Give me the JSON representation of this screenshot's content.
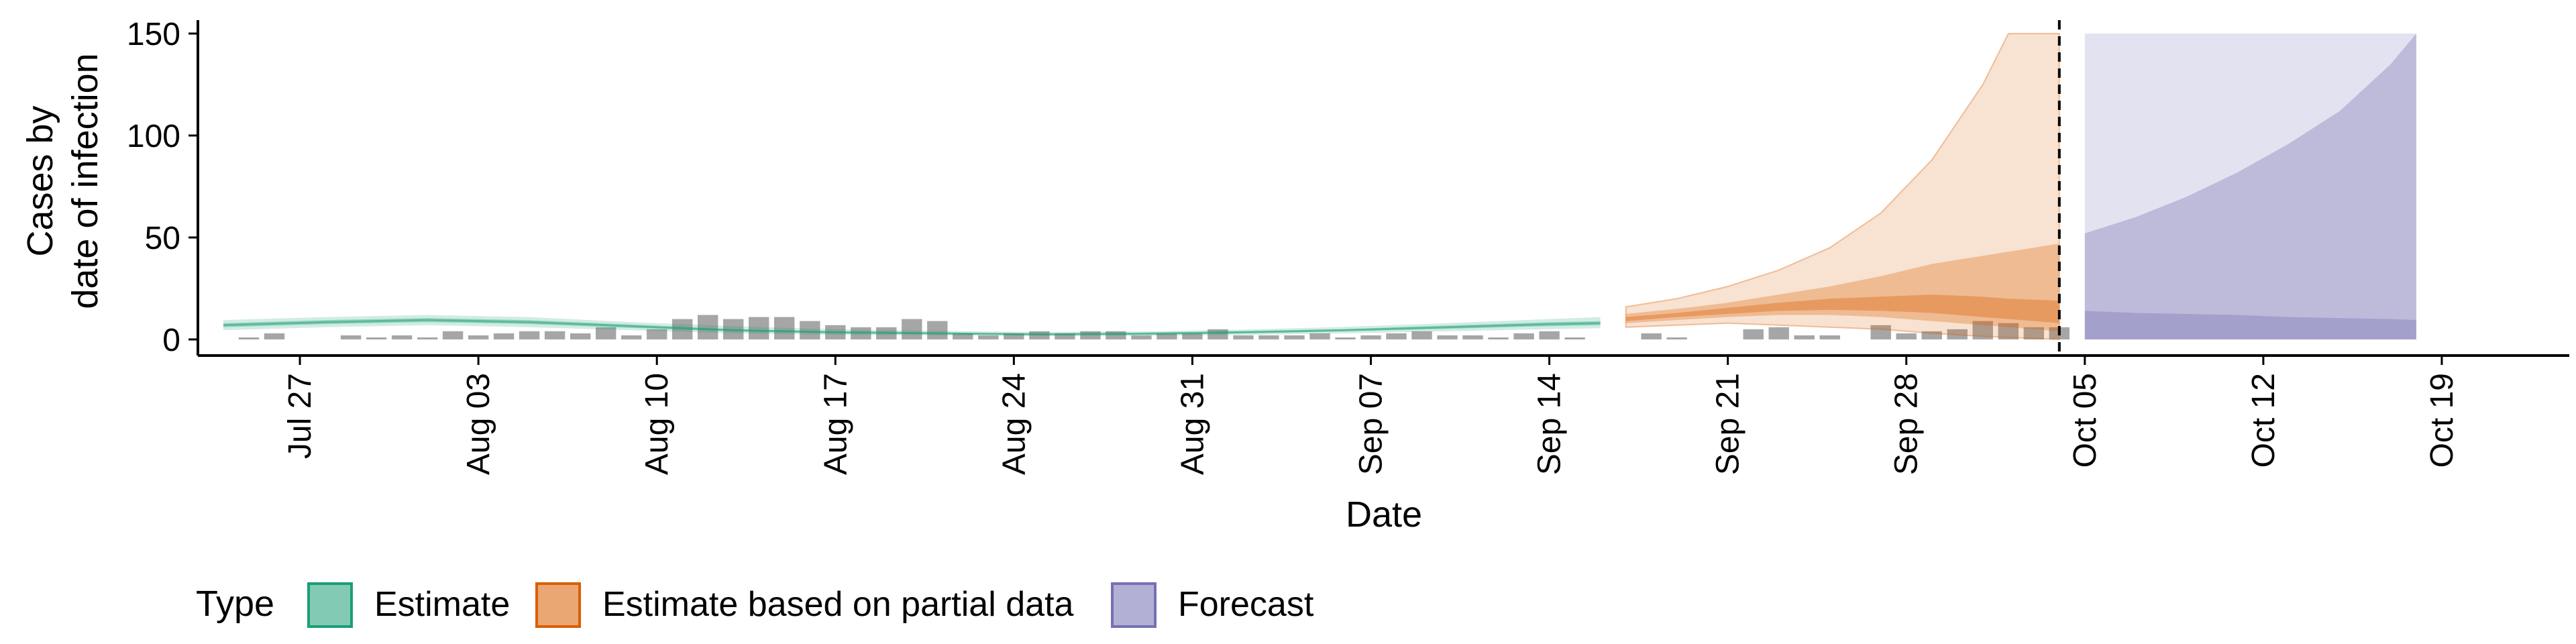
{
  "chart_data": {
    "type": "area",
    "xlabel": "Date",
    "ylabel_lines": [
      "Cases by",
      "date of infection"
    ],
    "ylim": [
      0,
      150
    ],
    "yticks": [
      0,
      50,
      100,
      150
    ],
    "xlim": [
      "2021-07-23",
      "2021-10-24"
    ],
    "xticks": [
      {
        "date": "2021-07-27",
        "label": "Jul 27"
      },
      {
        "date": "2021-08-03",
        "label": "Aug 03"
      },
      {
        "date": "2021-08-10",
        "label": "Aug 10"
      },
      {
        "date": "2021-08-17",
        "label": "Aug 17"
      },
      {
        "date": "2021-08-24",
        "label": "Aug 24"
      },
      {
        "date": "2021-08-31",
        "label": "Aug 31"
      },
      {
        "date": "2021-09-07",
        "label": "Sep 07"
      },
      {
        "date": "2021-09-14",
        "label": "Sep 14"
      },
      {
        "date": "2021-09-21",
        "label": "Sep 21"
      },
      {
        "date": "2021-09-28",
        "label": "Sep 28"
      },
      {
        "date": "2021-10-05",
        "label": "Oct 05"
      },
      {
        "date": "2021-10-12",
        "label": "Oct 12"
      },
      {
        "date": "2021-10-19",
        "label": "Oct 19"
      }
    ],
    "vline_date": "2021-10-04",
    "legend": {
      "title": "Type",
      "position": "bottom",
      "entries": [
        {
          "label": "Estimate",
          "color": "#1b9e77"
        },
        {
          "label": "Estimate based on partial data",
          "color": "#d95f02"
        },
        {
          "label": "Forecast",
          "color": "#7570b3"
        }
      ]
    },
    "observed_cases": {
      "color": "#a6a6a6",
      "dates": [
        "2021-07-25",
        "2021-07-26",
        "2021-07-27",
        "2021-07-28",
        "2021-07-29",
        "2021-07-30",
        "2021-07-31",
        "2021-08-01",
        "2021-08-02",
        "2021-08-03",
        "2021-08-04",
        "2021-08-05",
        "2021-08-06",
        "2021-08-07",
        "2021-08-08",
        "2021-08-09",
        "2021-08-10",
        "2021-08-11",
        "2021-08-12",
        "2021-08-13",
        "2021-08-14",
        "2021-08-15",
        "2021-08-16",
        "2021-08-17",
        "2021-08-18",
        "2021-08-19",
        "2021-08-20",
        "2021-08-21",
        "2021-08-22",
        "2021-08-23",
        "2021-08-24",
        "2021-08-25",
        "2021-08-26",
        "2021-08-27",
        "2021-08-28",
        "2021-08-29",
        "2021-08-30",
        "2021-08-31",
        "2021-09-01",
        "2021-09-02",
        "2021-09-03",
        "2021-09-04",
        "2021-09-05",
        "2021-09-06",
        "2021-09-07",
        "2021-09-08",
        "2021-09-09",
        "2021-09-10",
        "2021-09-11",
        "2021-09-12",
        "2021-09-13",
        "2021-09-14",
        "2021-09-15",
        "2021-09-16",
        "2021-09-17",
        "2021-09-18",
        "2021-09-19",
        "2021-09-20",
        "2021-09-21",
        "2021-09-22",
        "2021-09-23",
        "2021-09-24",
        "2021-09-25",
        "2021-09-26",
        "2021-09-27",
        "2021-09-28",
        "2021-09-29",
        "2021-09-30",
        "2021-10-01",
        "2021-10-02",
        "2021-10-03",
        "2021-10-04"
      ],
      "values": [
        1,
        3,
        0,
        0,
        2,
        1,
        2,
        1,
        4,
        2,
        3,
        4,
        4,
        3,
        6,
        2,
        5,
        10,
        12,
        10,
        11,
        11,
        9,
        7,
        6,
        6,
        10,
        9,
        3,
        2,
        3,
        4,
        3,
        4,
        4,
        2,
        3,
        3,
        5,
        2,
        2,
        2,
        3,
        1,
        2,
        3,
        4,
        2,
        2,
        1,
        3,
        4,
        1,
        0,
        0,
        3,
        1,
        0,
        0,
        5,
        6,
        2,
        2,
        0,
        7,
        3,
        4,
        5,
        9,
        8,
        6,
        6
      ]
    },
    "series": [
      {
        "name": "Estimate",
        "color": "#1b9e77",
        "dates": [
          "2021-07-24",
          "2021-07-28",
          "2021-08-01",
          "2021-08-05",
          "2021-08-09",
          "2021-08-13",
          "2021-08-17",
          "2021-08-21",
          "2021-08-25",
          "2021-08-29",
          "2021-09-02",
          "2021-09-06",
          "2021-09-10",
          "2021-09-14",
          "2021-09-16"
        ],
        "median": [
          7,
          8.5,
          9.5,
          8.5,
          6.5,
          4.5,
          3.5,
          3,
          2.5,
          2.8,
          3.5,
          4.5,
          6,
          7.5,
          8
        ],
        "lower_90": [
          4.5,
          6,
          7,
          6,
          4.5,
          3,
          2.2,
          2,
          1.7,
          1.8,
          2.2,
          3,
          4,
          5,
          5.5
        ],
        "upper_90": [
          9.5,
          11,
          12,
          11,
          8.5,
          6.5,
          5,
          4.2,
          3.6,
          3.9,
          4.8,
          6.2,
          8,
          10,
          11
        ],
        "lower_50": [
          6,
          7.5,
          8.5,
          7.5,
          5.7,
          4,
          3,
          2.6,
          2.1,
          2.3,
          3,
          4,
          5.2,
          6.5,
          7
        ],
        "upper_50": [
          8,
          9.5,
          10.5,
          9.5,
          7.3,
          5,
          4,
          3.4,
          2.9,
          3.3,
          4.1,
          5.1,
          6.8,
          8.5,
          9
        ]
      },
      {
        "name": "Estimate based on partial data",
        "color": "#d95f02",
        "dates": [
          "2021-09-17",
          "2021-09-19",
          "2021-09-21",
          "2021-09-23",
          "2021-09-25",
          "2021-09-27",
          "2021-09-29",
          "2021-10-01",
          "2021-10-02",
          "2021-10-03",
          "2021-10-04"
        ],
        "median": [
          10,
          12,
          14,
          16,
          17,
          17,
          16,
          14,
          13,
          12,
          11
        ],
        "lower_90": [
          6,
          7,
          8,
          7,
          6,
          5,
          3,
          1.5,
          1,
          0.5,
          0
        ],
        "upper_90": [
          16,
          20,
          26,
          34,
          45,
          62,
          88,
          125,
          150,
          150,
          150
        ],
        "lower_50": [
          8,
          9.5,
          11,
          12,
          12,
          11,
          9,
          7,
          6,
          5,
          4
        ],
        "upper_50": [
          12.5,
          15,
          18,
          22,
          26,
          31,
          37,
          41,
          43,
          45,
          47
        ],
        "lower_20": [
          9,
          11,
          12.5,
          14,
          14.5,
          14,
          13,
          11,
          10,
          9,
          8
        ],
        "upper_20": [
          11,
          13,
          15.5,
          18,
          20,
          21,
          22,
          21,
          20,
          19.5,
          19
        ]
      },
      {
        "name": "Forecast",
        "color": "#7570b3",
        "dates": [
          "2021-10-05",
          "2021-10-07",
          "2021-10-09",
          "2021-10-11",
          "2021-10-13",
          "2021-10-15",
          "2021-10-17",
          "2021-10-18"
        ],
        "upper_90": [
          150,
          150,
          150,
          150,
          150,
          150,
          150,
          150
        ],
        "upper_50": [
          52,
          60,
          70,
          82,
          96,
          112,
          135,
          150
        ],
        "upper_20": [
          14,
          13,
          12.5,
          12,
          11,
          10.5,
          10,
          9.5
        ],
        "lower": [
          0,
          0,
          0,
          0,
          0,
          0,
          0,
          0
        ]
      }
    ]
  }
}
